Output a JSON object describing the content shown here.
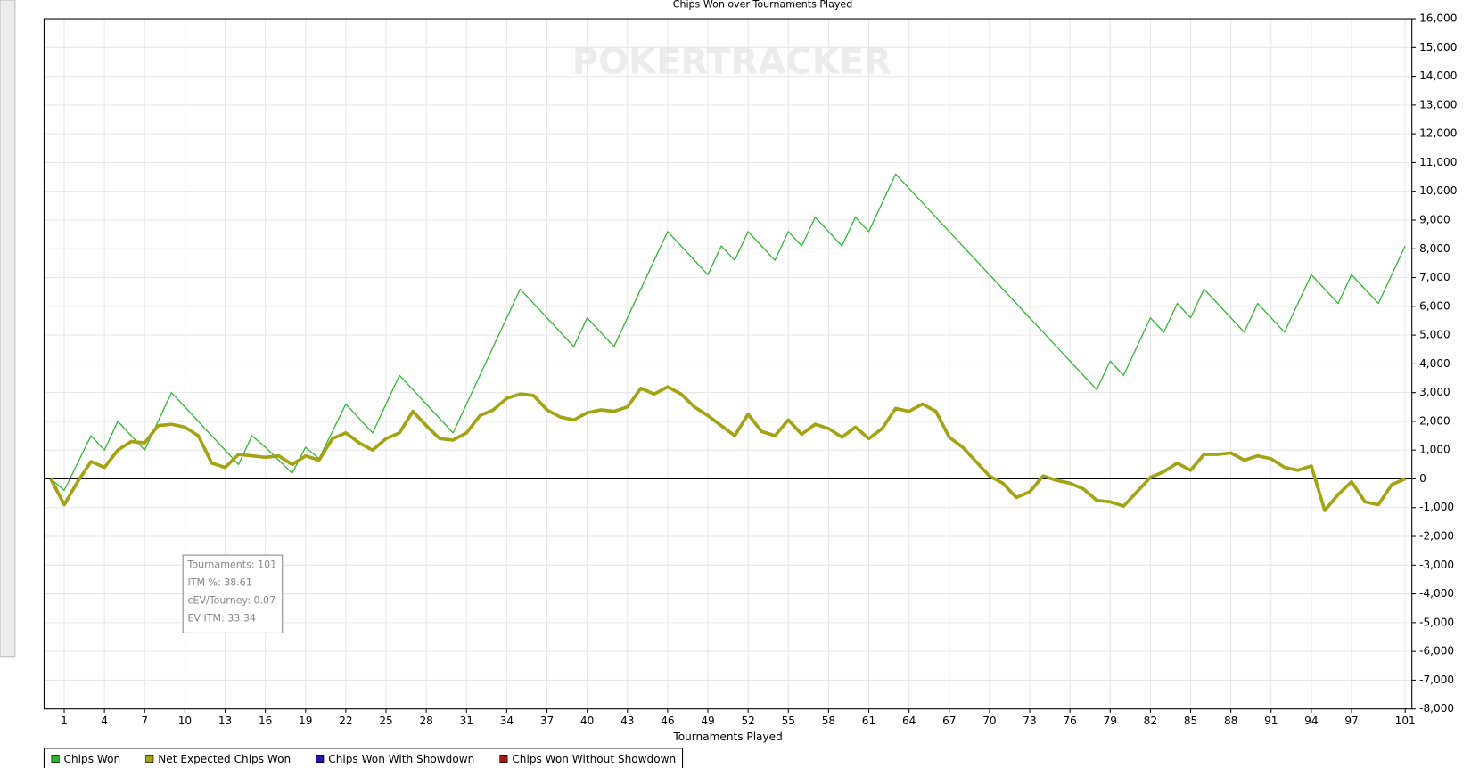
{
  "chart_data": {
    "type": "line",
    "title": "Chips Won over Tournaments Played",
    "watermark": "POKERTRACKER",
    "x_label": "Tournaments Played",
    "x": [
      0,
      1,
      2,
      3,
      4,
      5,
      6,
      7,
      8,
      9,
      10,
      11,
      12,
      13,
      14,
      15,
      16,
      17,
      18,
      19,
      20,
      21,
      22,
      23,
      24,
      25,
      26,
      27,
      28,
      29,
      30,
      31,
      32,
      33,
      34,
      35,
      36,
      37,
      38,
      39,
      40,
      41,
      42,
      43,
      44,
      45,
      46,
      47,
      48,
      49,
      50,
      51,
      52,
      53,
      54,
      55,
      56,
      57,
      58,
      59,
      60,
      61,
      62,
      63,
      64,
      65,
      66,
      67,
      68,
      69,
      70,
      71,
      72,
      73,
      74,
      75,
      76,
      77,
      78,
      79,
      80,
      81,
      82,
      83,
      84,
      85,
      86,
      87,
      88,
      89,
      90,
      91,
      92,
      93,
      94,
      95,
      96,
      97,
      98,
      99,
      100,
      101
    ],
    "series": [
      {
        "name": "Chips Won",
        "color": "#2db52d",
        "width": 1.2,
        "values": [
          0,
          -400,
          550,
          1500,
          1000,
          2000,
          1500,
          1000,
          2000,
          3000,
          2500,
          2000,
          1500,
          1000,
          500,
          1500,
          1100,
          650,
          200,
          1100,
          700,
          1650,
          2600,
          2100,
          1600,
          2600,
          3600,
          3100,
          2600,
          2100,
          1600,
          2600,
          3600,
          4600,
          5600,
          6600,
          6100,
          5600,
          5100,
          4600,
          5600,
          5100,
          4600,
          5600,
          6600,
          7600,
          8600,
          8100,
          7600,
          7100,
          8100,
          7600,
          8600,
          8100,
          7600,
          8600,
          8100,
          9100,
          8600,
          8100,
          9100,
          8600,
          9600,
          10600,
          10100,
          9600,
          9100,
          8600,
          8100,
          7600,
          7100,
          6600,
          6100,
          5600,
          5100,
          4600,
          4100,
          3600,
          3100,
          4100,
          3600,
          4600,
          5600,
          5100,
          6100,
          5600,
          6600,
          6100,
          5600,
          5100,
          6100,
          5600,
          5100,
          6100,
          7100,
          6600,
          6100,
          7100,
          6600,
          6100,
          7100,
          8100
        ]
      },
      {
        "name": "Net Expected Chips Won",
        "color": "#a3a314",
        "width": 3.5,
        "values": [
          0,
          -900,
          -100,
          600,
          400,
          1000,
          1300,
          1250,
          1850,
          1900,
          1800,
          1500,
          550,
          400,
          850,
          800,
          750,
          800,
          500,
          800,
          650,
          1400,
          1600,
          1250,
          1000,
          1400,
          1600,
          2350,
          1850,
          1400,
          1350,
          1600,
          2200,
          2400,
          2800,
          2950,
          2900,
          2400,
          2150,
          2050,
          2300,
          2400,
          2350,
          2500,
          3150,
          2950,
          3200,
          2950,
          2500,
          2200,
          1850,
          1500,
          2250,
          1650,
          1500,
          2050,
          1550,
          1900,
          1750,
          1450,
          1800,
          1400,
          1750,
          2450,
          2350,
          2600,
          2350,
          1450,
          1100,
          600,
          100,
          -150,
          -650,
          -450,
          100,
          -50,
          -150,
          -350,
          -750,
          -800,
          -950,
          -450,
          50,
          250,
          550,
          300,
          850,
          850,
          900,
          650,
          800,
          700,
          400,
          300,
          450,
          -1100,
          -550,
          -100,
          -800,
          -900,
          -200,
          0
        ]
      },
      {
        "name": "Chips Won With Showdown",
        "color": "#1a1aa6",
        "hidden": true
      },
      {
        "name": "Chips Won Without Showdown",
        "color": "#a61a1a",
        "hidden": true
      }
    ],
    "xlim": [
      -0.5,
      101.5
    ],
    "xticks": [
      1,
      4,
      7,
      10,
      13,
      16,
      19,
      22,
      25,
      28,
      31,
      34,
      37,
      40,
      43,
      46,
      49,
      52,
      55,
      58,
      61,
      64,
      67,
      70,
      73,
      76,
      79,
      82,
      85,
      88,
      91,
      94,
      97,
      101
    ],
    "ylim": [
      -8000,
      16000
    ],
    "yticks": [
      {
        "value": -8000,
        "label": "-8,000"
      },
      {
        "value": -7000,
        "label": "-7,000"
      },
      {
        "value": -6000,
        "label": "-6,000"
      },
      {
        "value": -5000,
        "label": "-5,000"
      },
      {
        "value": -4000,
        "label": "-4,000"
      },
      {
        "value": -3000,
        "label": "-3,000"
      },
      {
        "value": -2000,
        "label": "-2,000"
      },
      {
        "value": -1000,
        "label": "-1,000"
      },
      0,
      {
        "value": 1000,
        "label": "1,000"
      },
      {
        "value": 2000,
        "label": "2,000"
      },
      {
        "value": 3000,
        "label": "3,000"
      },
      {
        "value": 4000,
        "label": "4,000"
      },
      {
        "value": 5000,
        "label": "5,000"
      },
      {
        "value": 6000,
        "label": "6,000"
      },
      {
        "value": 7000,
        "label": "7,000"
      },
      {
        "value": 8000,
        "label": "8,000"
      },
      {
        "value": 9000,
        "label": "9,000"
      },
      {
        "value": 10000,
        "label": "10,000"
      },
      {
        "value": 11000,
        "label": "11,000"
      },
      {
        "value": 12000,
        "label": "12,000"
      },
      {
        "value": 13000,
        "label": "13,000"
      },
      {
        "value": 14000,
        "label": "14,000"
      },
      {
        "value": 15000,
        "label": "15,000"
      },
      {
        "value": 16000,
        "label": "16,000"
      }
    ],
    "grid": true,
    "y_axis_side": "right",
    "stats_box": [
      "Tournaments: 101",
      "ITM %: 38.61",
      "cEV/Tourney: 0.07",
      "EV ITM: 33.34"
    ]
  }
}
